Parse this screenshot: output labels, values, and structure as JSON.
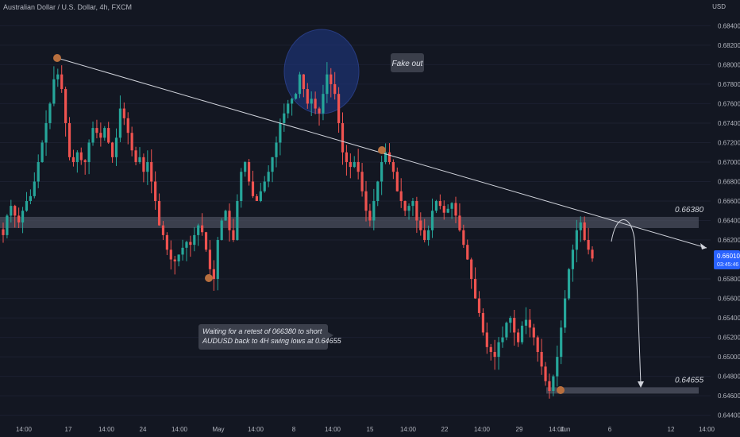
{
  "header": {
    "title": "Australian Dollar / U.S. Dollar, 4h, FXCM",
    "currency": "USD"
  },
  "chart_data": {
    "type": "candlestick",
    "ylim": [
      0.6434,
      0.6855
    ],
    "y_ticks": [
      0.644,
      0.646,
      0.648,
      0.65,
      0.652,
      0.654,
      0.656,
      0.658,
      0.662,
      0.664,
      0.666,
      0.668,
      0.67,
      0.672,
      0.674,
      0.676,
      0.678,
      0.68,
      0.682,
      0.684
    ],
    "y_tick_labels": [
      "0.64400",
      "0.64600",
      "0.64800",
      "0.65000",
      "0.65200",
      "0.65400",
      "0.65600",
      "0.65800",
      "0.66200",
      "0.66400",
      "0.66600",
      "0.66800",
      "0.67000",
      "0.67200",
      "0.67400",
      "0.67600",
      "0.67800",
      "0.68000",
      "0.68200",
      "0.68400"
    ],
    "x_tick_labels": [
      "14:00",
      "17",
      "14:00",
      "24",
      "14:00",
      "May",
      "14:00",
      "8",
      "14:00",
      "15",
      "14:00",
      "22",
      "14:00",
      "29",
      "14:00",
      "Jun",
      "6",
      "12",
      "14:00"
    ],
    "last_price": {
      "value": "0.66010",
      "countdown": "03:45:46"
    },
    "close_path": [
      0.6625,
      0.6645,
      0.6655,
      0.6645,
      0.6638,
      0.665,
      0.666,
      0.6665,
      0.668,
      0.67,
      0.672,
      0.674,
      0.676,
      0.6785,
      0.679,
      0.6775,
      0.674,
      0.6705,
      0.67,
      0.671,
      0.6702,
      0.67,
      0.672,
      0.6735,
      0.673,
      0.6725,
      0.6735,
      0.672,
      0.6705,
      0.6725,
      0.6755,
      0.6745,
      0.673,
      0.6712,
      0.67,
      0.6705,
      0.669,
      0.67,
      0.668,
      0.666,
      0.6635,
      0.6625,
      0.661,
      0.66,
      0.6598,
      0.6605,
      0.6612,
      0.6618,
      0.6615,
      0.6625,
      0.6635,
      0.6628,
      0.661,
      0.659,
      0.658,
      0.662,
      0.664,
      0.665,
      0.663,
      0.662,
      0.666,
      0.669,
      0.67,
      0.668,
      0.6665,
      0.666,
      0.667,
      0.668,
      0.669,
      0.6705,
      0.672,
      0.674,
      0.675,
      0.676,
      0.6765,
      0.677,
      0.679,
      0.6775,
      0.676,
      0.6765,
      0.6755,
      0.675,
      0.677,
      0.679,
      0.678,
      0.677,
      0.674,
      0.671,
      0.67,
      0.6695,
      0.67,
      0.669,
      0.667,
      0.665,
      0.664,
      0.666,
      0.668,
      0.67,
      0.671,
      0.67,
      0.669,
      0.667,
      0.666,
      0.665,
      0.6655,
      0.666,
      0.664,
      0.663,
      0.662,
      0.663,
      0.665,
      0.666,
      0.6655,
      0.6648,
      0.6652,
      0.6658,
      0.6645,
      0.663,
      0.6615,
      0.66,
      0.658,
      0.656,
      0.6545,
      0.6525,
      0.651,
      0.6505,
      0.65,
      0.6515,
      0.652,
      0.6535,
      0.654,
      0.6525,
      0.6515,
      0.6532,
      0.6538,
      0.653,
      0.652,
      0.6505,
      0.649,
      0.6475,
      0.6465,
      0.648,
      0.65,
      0.653,
      0.656,
      0.659,
      0.661,
      0.663,
      0.6638,
      0.662,
      0.661,
      0.6601
    ],
    "annotations": [
      {
        "id": "fake-out",
        "text": "Fake out"
      },
      {
        "id": "plan",
        "lines": [
          "Waiting for a retest of 066380 to short",
          "AUDUSD back to 4H swing lows at 0.64655"
        ]
      },
      {
        "id": "level-top",
        "text": "0.66380",
        "value": 0.6638
      },
      {
        "id": "level-bottom",
        "text": "0.64655",
        "value": 0.64655
      }
    ],
    "colors": {
      "background": "#131722",
      "bull": "#26a69a",
      "bear": "#ef5350",
      "zone": "#4a4e5c",
      "trendline": "#d1d4dc",
      "marker": "#b86f3e",
      "circle": "#1f3a8a",
      "label_bg": "#3b3f4b",
      "price_tag": "#2962ff"
    }
  }
}
